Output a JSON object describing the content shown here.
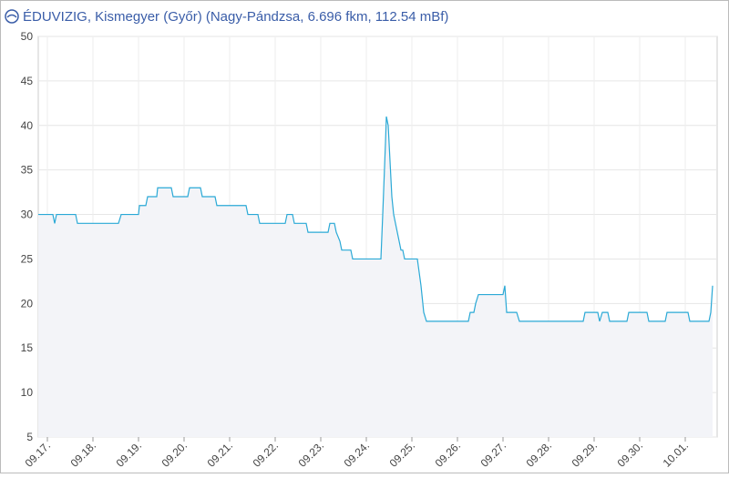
{
  "chart_data": {
    "type": "line",
    "title": "ÉDUVIZIG, Kismegyer (Győr) (Nagy-Pándzsa, 6.696 fkm, 112.54 mBf)",
    "x": [
      -0.2,
      0.12,
      0.16,
      0.2,
      0.62,
      0.66,
      1.56,
      1.62,
      2.0,
      2.02,
      2.16,
      2.2,
      2.4,
      2.42,
      2.72,
      2.76,
      3.08,
      3.12,
      3.36,
      3.4,
      3.68,
      3.72,
      4.36,
      4.4,
      4.62,
      4.66,
      5.22,
      5.26,
      5.38,
      5.42,
      5.68,
      5.72,
      6.16,
      6.2,
      6.3,
      6.34,
      6.42,
      6.46,
      6.66,
      6.7,
      7.32,
      7.36,
      7.42,
      7.44,
      7.48,
      7.52,
      7.56,
      7.6,
      7.64,
      7.68,
      7.72,
      7.76,
      7.8,
      7.84,
      8.12,
      8.2,
      8.26,
      8.32,
      9.24,
      9.28,
      9.36,
      9.4,
      9.46,
      10.0,
      10.04,
      10.08,
      10.3,
      10.36,
      11.76,
      11.8,
      12.08,
      12.12,
      12.18,
      12.3,
      12.34,
      12.72,
      12.76,
      13.16,
      13.2,
      13.56,
      13.6,
      14.06,
      14.1,
      14.52,
      14.56,
      14.6
    ],
    "series": [
      {
        "color": "#2aa9d6",
        "values": [
          30,
          30,
          29,
          30,
          30,
          29,
          29,
          30,
          30,
          31,
          31,
          32,
          32,
          33,
          33,
          32,
          32,
          33,
          33,
          32,
          32,
          31,
          31,
          30,
          30,
          29,
          29,
          30,
          30,
          29,
          29,
          28,
          28,
          29,
          29,
          28,
          27,
          26,
          26,
          25,
          25,
          30,
          38,
          41,
          40,
          36,
          32,
          30,
          29,
          28,
          27,
          26,
          26,
          25,
          25,
          22,
          19,
          18,
          18,
          19,
          19,
          20,
          21,
          21,
          22,
          19,
          19,
          18,
          18,
          19,
          19,
          18,
          19,
          19,
          18,
          18,
          19,
          19,
          18,
          18,
          19,
          19,
          18,
          18,
          19,
          22
        ]
      }
    ],
    "area_color": "#f3f4f8",
    "xlim": [
      -0.2,
      14.7
    ],
    "xticks": [
      {
        "value": 0,
        "label": "09.17."
      },
      {
        "value": 1,
        "label": "09.18."
      },
      {
        "value": 2,
        "label": "09.19."
      },
      {
        "value": 3,
        "label": "09.20."
      },
      {
        "value": 4,
        "label": "09.21."
      },
      {
        "value": 5,
        "label": "09.22."
      },
      {
        "value": 6,
        "label": "09.23."
      },
      {
        "value": 7,
        "label": "09.24."
      },
      {
        "value": 8,
        "label": "09.25."
      },
      {
        "value": 9,
        "label": "09.26."
      },
      {
        "value": 10,
        "label": "09.27."
      },
      {
        "value": 11,
        "label": "09.28."
      },
      {
        "value": 12,
        "label": "09.29."
      },
      {
        "value": 13,
        "label": "09.30."
      },
      {
        "value": 14,
        "label": "10.01."
      }
    ],
    "ylim": [
      5,
      50
    ],
    "yticks": [
      5,
      10,
      15,
      20,
      25,
      30,
      35,
      40,
      45,
      50
    ],
    "grid": true
  }
}
